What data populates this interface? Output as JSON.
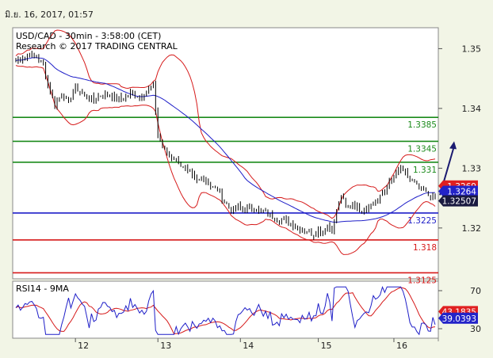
{
  "header": {
    "datestamp": "มิ.ย. 16, 2017, 01:57"
  },
  "chart_data": {
    "type": "candlestick",
    "title": "USD/CAD - 30min - 3:58:00 (CET)",
    "subtitle": "Research © 2017 TRADING CENTRAL",
    "x_ticks": [
      "12",
      "13",
      "14",
      "15",
      "16"
    ],
    "y_ticks": [
      1.35,
      1.34,
      1.33,
      1.32
    ],
    "y_range": [
      1.3115,
      1.3535
    ],
    "levels": [
      {
        "value": 1.3385,
        "label": "1.3385",
        "color": "#1a8a1a"
      },
      {
        "value": 1.3345,
        "label": "1.3345",
        "color": "#1a8a1a"
      },
      {
        "value": 1.331,
        "label": "1.331",
        "color": "#1a8a1a"
      },
      {
        "value": 1.3225,
        "label": "1.3225",
        "color": "#1f1fc8"
      },
      {
        "value": 1.318,
        "label": "1.318",
        "color": "#d61a1a"
      },
      {
        "value": 1.3125,
        "label": "1.3125",
        "color": "#d61a1a"
      }
    ],
    "price_tags": [
      {
        "value": 1.3269,
        "label": "1.3269",
        "color": "#e02020"
      },
      {
        "value": 1.3264,
        "label": "1.3264",
        "color": "#2323c8"
      },
      {
        "value": 1.32507,
        "label": "1.32507",
        "color": "#1a1a40"
      }
    ],
    "close_path": [
      [
        0,
        1.348
      ],
      [
        3,
        1.3485
      ],
      [
        6,
        1.349
      ],
      [
        9,
        1.3485
      ],
      [
        12,
        1.3475
      ],
      [
        14,
        1.344
      ],
      [
        17,
        1.3405
      ],
      [
        20,
        1.3425
      ],
      [
        23,
        1.341
      ],
      [
        26,
        1.3435
      ],
      [
        30,
        1.342
      ],
      [
        34,
        1.3415
      ],
      [
        38,
        1.3425
      ],
      [
        42,
        1.342
      ],
      [
        46,
        1.3415
      ],
      [
        50,
        1.3425
      ],
      [
        54,
        1.342
      ],
      [
        58,
        1.343
      ],
      [
        60,
        1.344
      ],
      [
        62,
        1.3355
      ],
      [
        64,
        1.3335
      ],
      [
        67,
        1.332
      ],
      [
        70,
        1.3315
      ],
      [
        73,
        1.33
      ],
      [
        76,
        1.329
      ],
      [
        79,
        1.328
      ],
      [
        82,
        1.3285
      ],
      [
        85,
        1.327
      ],
      [
        88,
        1.3265
      ],
      [
        91,
        1.3245
      ],
      [
        94,
        1.323
      ],
      [
        97,
        1.3235
      ],
      [
        100,
        1.323
      ],
      [
        103,
        1.3235
      ],
      [
        106,
        1.323
      ],
      [
        109,
        1.3225
      ],
      [
        112,
        1.322
      ],
      [
        115,
        1.3215
      ],
      [
        118,
        1.321
      ],
      [
        121,
        1.3205
      ],
      [
        124,
        1.32
      ],
      [
        127,
        1.3195
      ],
      [
        130,
        1.319
      ],
      [
        132,
        1.32
      ],
      [
        134,
        1.319
      ],
      [
        136,
        1.3205
      ],
      [
        138,
        1.3195
      ],
      [
        140,
        1.323
      ],
      [
        142,
        1.3255
      ],
      [
        144,
        1.3235
      ],
      [
        147,
        1.324
      ],
      [
        150,
        1.323
      ],
      [
        153,
        1.3235
      ],
      [
        156,
        1.324
      ],
      [
        159,
        1.325
      ],
      [
        162,
        1.327
      ],
      [
        165,
        1.3285
      ],
      [
        168,
        1.33
      ],
      [
        170,
        1.329
      ],
      [
        172,
        1.328
      ],
      [
        174,
        1.3275
      ],
      [
        176,
        1.3265
      ],
      [
        178,
        1.3262
      ],
      [
        180,
        1.3255
      ],
      [
        183,
        1.3252
      ]
    ],
    "indicator": {
      "name": "RSI14 - 9MA",
      "y_ticks": [
        70,
        30
      ],
      "y_range": [
        20,
        80
      ],
      "tags": [
        {
          "value": 43.1835,
          "label": "43.1835",
          "color": "#e02020"
        },
        {
          "value": 39.0393,
          "label": "39.0393",
          "color": "#2323c8"
        }
      ]
    },
    "target_arrow": {
      "from": 1.3255,
      "to": 1.3345
    },
    "colors": {
      "bollinger": "#d61a1a",
      "moving_average": "#1f1fc8",
      "candles": "#000000"
    }
  }
}
